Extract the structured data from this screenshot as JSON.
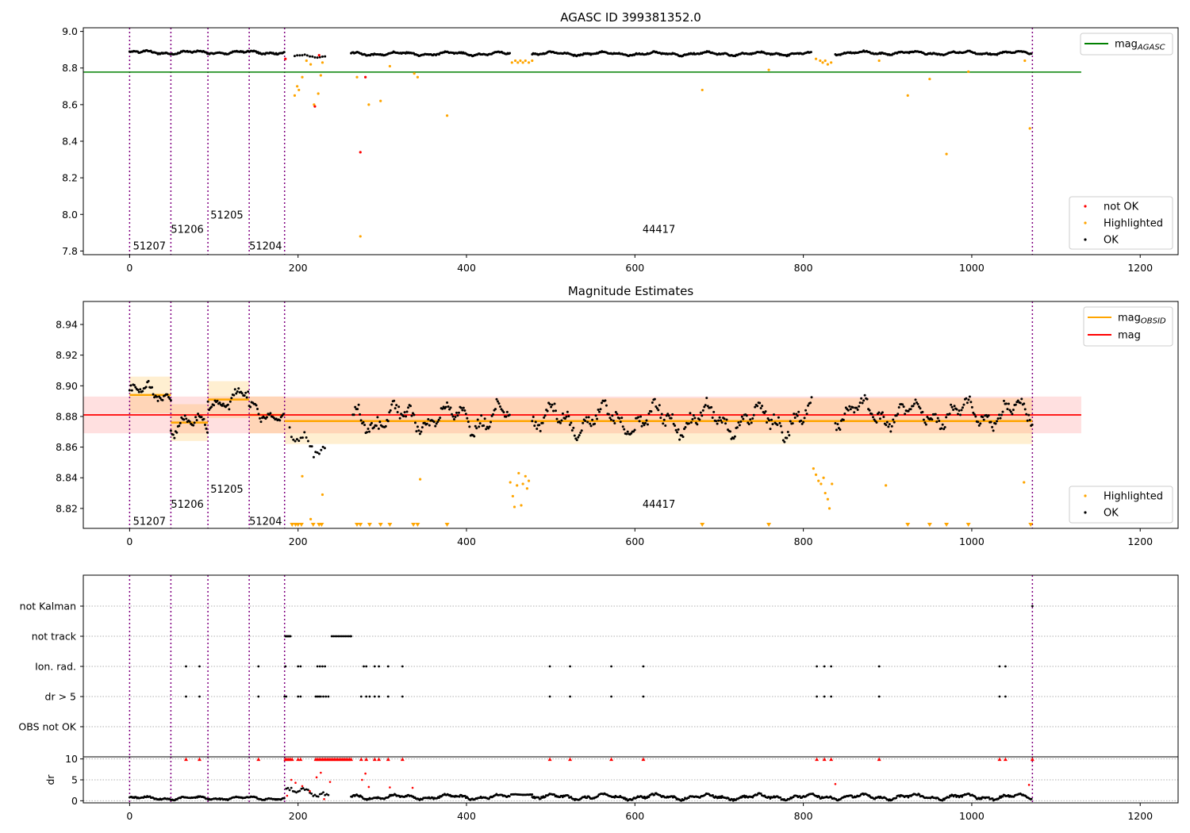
{
  "chart_data": [
    {
      "type": "scatter",
      "title": "AGASC ID 399381352.0",
      "xlim": [
        -55,
        1245
      ],
      "ylim": [
        7.78,
        9.02
      ],
      "xticks": [
        0,
        200,
        400,
        600,
        800,
        1000,
        1200
      ],
      "yticks": [
        "7.8",
        "8.0",
        "8.2",
        "8.4",
        "8.6",
        "8.8",
        "9.0"
      ],
      "obsid_boundaries": [
        0,
        49,
        93,
        142,
        184,
        1072
      ],
      "obsid_labels": [
        {
          "text": "51207",
          "x": 4,
          "y": 7.83
        },
        {
          "text": "51206",
          "x": 49,
          "y": 7.92
        },
        {
          "text": "51205",
          "x": 96,
          "y": 8.0
        },
        {
          "text": "51204",
          "x": 142,
          "y": 7.83
        },
        {
          "text": "44417",
          "x": 609,
          "y": 7.92
        }
      ],
      "reference_line": {
        "name": "mag_AGASC",
        "y": 8.778,
        "x_range": [
          -55,
          1130
        ],
        "color": "#008000"
      },
      "legends": [
        {
          "position": "top-right",
          "entries": [
            {
              "label": "mag",
              "sub": "AGASC",
              "kind": "line",
              "color": "#008000"
            }
          ]
        },
        {
          "position": "bottom-right",
          "entries": [
            {
              "label": "not OK",
              "kind": "dot",
              "color": "#ff0000"
            },
            {
              "label": "Highlighted",
              "kind": "dot",
              "color": "#ffa500"
            },
            {
              "label": "OK",
              "kind": "dot",
              "color": "#000000"
            }
          ]
        }
      ],
      "series": [
        {
          "name": "OK",
          "color": "#000000",
          "segments": [
            {
              "x0": 0,
              "x1": 184,
              "base": 8.885,
              "amp": 0.012,
              "step": 1.2
            },
            {
              "x0": 196,
              "x1": 233,
              "base": 8.865,
              "amp": 0.01,
              "step": 3
            },
            {
              "x0": 263,
              "x1": 452,
              "base": 8.878,
              "amp": 0.012,
              "step": 1.2
            },
            {
              "x0": 478,
              "x1": 810,
              "base": 8.878,
              "amp": 0.012,
              "step": 1.2
            },
            {
              "x0": 838,
              "x1": 1072,
              "base": 8.882,
              "amp": 0.012,
              "step": 1.2
            }
          ]
        },
        {
          "name": "Highlighted",
          "color": "#ffa500",
          "points": [
            [
              196,
              8.65
            ],
            [
              199,
              8.7
            ],
            [
              201,
              8.68
            ],
            [
              205,
              8.75
            ],
            [
              210,
              8.84
            ],
            [
              215,
              8.82
            ],
            [
              219,
              8.6
            ],
            [
              224,
              8.66
            ],
            [
              227,
              8.76
            ],
            [
              229,
              8.83
            ],
            [
              270,
              8.75
            ],
            [
              274,
              7.88
            ],
            [
              284,
              8.6
            ],
            [
              298,
              8.62
            ],
            [
              309,
              8.81
            ],
            [
              338,
              8.77
            ],
            [
              342,
              8.75
            ],
            [
              377,
              8.54
            ],
            [
              454,
              8.83
            ],
            [
              458,
              8.84
            ],
            [
              461,
              8.83
            ],
            [
              464,
              8.84
            ],
            [
              467,
              8.83
            ],
            [
              470,
              8.84
            ],
            [
              474,
              8.83
            ],
            [
              478,
              8.84
            ],
            [
              680,
              8.68
            ],
            [
              759,
              8.79
            ],
            [
              815,
              8.85
            ],
            [
              820,
              8.84
            ],
            [
              823,
              8.83
            ],
            [
              826,
              8.84
            ],
            [
              829,
              8.82
            ],
            [
              833,
              8.83
            ],
            [
              890,
              8.84
            ],
            [
              924,
              8.65
            ],
            [
              950,
              8.74
            ],
            [
              970,
              8.33
            ],
            [
              996,
              8.78
            ],
            [
              1063,
              8.84
            ],
            [
              1069,
              8.47
            ]
          ]
        },
        {
          "name": "not OK",
          "color": "#ff0000",
          "points": [
            [
              185,
              8.85
            ],
            [
              220,
              8.59
            ],
            [
              225,
              8.87
            ],
            [
              274,
              8.34
            ],
            [
              280,
              8.75
            ]
          ]
        }
      ]
    },
    {
      "type": "scatter",
      "title": "Magnitude Estimates",
      "xlim": [
        -55,
        1245
      ],
      "ylim": [
        8.807,
        8.955
      ],
      "xticks": [
        0,
        200,
        400,
        600,
        800,
        1000,
        1200
      ],
      "yticks": [
        "8.82",
        "8.84",
        "8.86",
        "8.88",
        "8.90",
        "8.92",
        "8.94"
      ],
      "obsid_boundaries": [
        0,
        49,
        93,
        142,
        184,
        1072
      ],
      "obsid_labels": [
        {
          "text": "51207",
          "x": 4,
          "y": 8.812
        },
        {
          "text": "51206",
          "x": 49,
          "y": 8.823
        },
        {
          "text": "51205",
          "x": 96,
          "y": 8.833
        },
        {
          "text": "51204",
          "x": 142,
          "y": 8.812
        },
        {
          "text": "44417",
          "x": 609,
          "y": 8.823
        }
      ],
      "mag_line": {
        "name": "mag",
        "y": 8.881,
        "band": [
          8.869,
          8.893
        ],
        "x_range": [
          -55,
          1130
        ],
        "color": "#ff0000"
      },
      "mag_obsid": {
        "name": "mag_OBSID",
        "color": "#ffa500",
        "steps": [
          {
            "x0": 0,
            "x1": 49,
            "y": 8.894,
            "lo": 8.882,
            "hi": 8.906
          },
          {
            "x0": 49,
            "x1": 93,
            "y": 8.876,
            "lo": 8.864,
            "hi": 8.888
          },
          {
            "x0": 93,
            "x1": 142,
            "y": 8.891,
            "lo": 8.879,
            "hi": 8.903
          },
          {
            "x0": 142,
            "x1": 184,
            "y": 8.881,
            "lo": 8.869,
            "hi": 8.893
          },
          {
            "x0": 184,
            "x1": 1072,
            "y": 8.877,
            "lo": 8.862,
            "hi": 8.892
          }
        ]
      },
      "legends": [
        {
          "position": "top-right",
          "entries": [
            {
              "label": "mag",
              "sub": "OBSID",
              "kind": "line",
              "color": "#ffa500"
            },
            {
              "label": "mag",
              "kind": "line",
              "color": "#ff0000"
            }
          ]
        },
        {
          "position": "bottom-right",
          "entries": [
            {
              "label": "Highlighted",
              "kind": "dot",
              "color": "#ffa500"
            },
            {
              "label": "OK",
              "kind": "dot",
              "color": "#000000"
            }
          ]
        }
      ],
      "series": [
        {
          "name": "OK",
          "color": "#000000",
          "segments": [
            {
              "x0": 0,
              "x1": 49,
              "base": 8.895,
              "amp": 0.008,
              "step": 1.4
            },
            {
              "x0": 49,
              "x1": 93,
              "base": 8.874,
              "amp": 0.009,
              "step": 1.4
            },
            {
              "x0": 93,
              "x1": 142,
              "base": 8.891,
              "amp": 0.009,
              "step": 1.4
            },
            {
              "x0": 142,
              "x1": 184,
              "base": 8.883,
              "amp": 0.008,
              "step": 1.4
            },
            {
              "x0": 190,
              "x1": 232,
              "base": 8.862,
              "amp": 0.012,
              "step": 2.2
            },
            {
              "x0": 265,
              "x1": 452,
              "base": 8.879,
              "amp": 0.012,
              "step": 1.4
            },
            {
              "x0": 478,
              "x1": 810,
              "base": 8.878,
              "amp": 0.013,
              "step": 1.4
            },
            {
              "x0": 838,
              "x1": 1072,
              "base": 8.882,
              "amp": 0.011,
              "step": 1.4
            }
          ]
        },
        {
          "name": "Highlighted",
          "color": "#ffa500",
          "points": [
            [
              205,
              8.841
            ],
            [
              215,
              8.813
            ],
            [
              229,
              8.829
            ],
            [
              345,
              8.839
            ],
            [
              452,
              8.837
            ],
            [
              455,
              8.828
            ],
            [
              457,
              8.821
            ],
            [
              460,
              8.835
            ],
            [
              462,
              8.843
            ],
            [
              465,
              8.822
            ],
            [
              467,
              8.836
            ],
            [
              470,
              8.841
            ],
            [
              472,
              8.833
            ],
            [
              474,
              8.838
            ],
            [
              812,
              8.846
            ],
            [
              815,
              8.842
            ],
            [
              818,
              8.838
            ],
            [
              821,
              8.836
            ],
            [
              824,
              8.84
            ],
            [
              826,
              8.83
            ],
            [
              829,
              8.826
            ],
            [
              831,
              8.82
            ],
            [
              834,
              8.836
            ],
            [
              898,
              8.835
            ],
            [
              1062,
              8.837
            ]
          ]
        },
        {
          "name": "Highlighted (below axis)",
          "color": "#ffa500",
          "marker": "triangle-down",
          "x": [
            193,
            197,
            200,
            204,
            218,
            225,
            228,
            270,
            274,
            285,
            298,
            309,
            337,
            342,
            377,
            680,
            759,
            924,
            950,
            970,
            996,
            1070
          ]
        }
      ]
    },
    {
      "type": "scatter",
      "title": "",
      "xlim": [
        -55,
        1245
      ],
      "categories": [
        "not Kalman",
        "not track",
        "Ion. rad.",
        "dr > 5",
        "OBS not OK"
      ],
      "obsid_boundaries": [
        0,
        49,
        93,
        142,
        184,
        1072
      ],
      "series": [
        {
          "name": "not Kalman",
          "x": [
            1072
          ]
        },
        {
          "name": "not track",
          "x": [
            185,
            186,
            187,
            188,
            189,
            190,
            191,
            240,
            242,
            244,
            246,
            248,
            250,
            252,
            254,
            256,
            258,
            260,
            262,
            263
          ]
        },
        {
          "name": "Ion. rad.",
          "x": [
            67,
            83,
            153,
            185,
            200,
            203,
            223,
            226,
            229,
            232,
            278,
            281,
            291,
            296,
            307,
            324,
            499,
            523,
            572,
            610,
            816,
            825,
            833,
            890,
            1033,
            1040
          ]
        },
        {
          "name": "dr > 5",
          "x": [
            67,
            83,
            153,
            184,
            186,
            200,
            203,
            221,
            223,
            225,
            227,
            230,
            233,
            236,
            275,
            281,
            285,
            291,
            296,
            307,
            324,
            499,
            523,
            572,
            610,
            816,
            825,
            833,
            890,
            1033,
            1040
          ]
        },
        {
          "name": "OBS not OK",
          "x": []
        }
      ]
    },
    {
      "type": "scatter",
      "title": "",
      "ylabel": "dr",
      "xlim": [
        -55,
        1245
      ],
      "ylim": [
        -0.5,
        10.5
      ],
      "xticks": [
        0,
        200,
        400,
        600,
        800,
        1000,
        1200
      ],
      "yticks": [
        "0",
        "5",
        "10"
      ],
      "obsid_boundaries": [
        0,
        49,
        93,
        142,
        184,
        1072
      ],
      "series": [
        {
          "name": "OK",
          "color": "#000000",
          "segments": [
            {
              "x0": 0,
              "x1": 184,
              "base": 0.6,
              "amp": 0.5,
              "step": 1.1
            },
            {
              "x0": 186,
              "x1": 236,
              "base": 2.0,
              "amp": 1.3,
              "step": 2.0
            },
            {
              "x0": 263,
              "x1": 452,
              "base": 0.9,
              "amp": 0.7,
              "step": 1.1
            },
            {
              "x0": 453,
              "x1": 478,
              "base": 1.5,
              "amp": 0.1,
              "step": 1.0
            },
            {
              "x0": 478,
              "x1": 1072,
              "base": 0.9,
              "amp": 0.8,
              "step": 1.1
            }
          ]
        },
        {
          "name": "red",
          "color": "#ff0000",
          "points": [
            [
              187,
              1.2
            ],
            [
              192,
              5.0
            ],
            [
              197,
              4.3
            ],
            [
              205,
              3.5
            ],
            [
              214,
              2.3
            ],
            [
              222,
              5.6
            ],
            [
              227,
              6.7
            ],
            [
              231,
              0.4
            ],
            [
              238,
              4.5
            ],
            [
              276,
              5.0
            ],
            [
              280,
              6.5
            ],
            [
              284,
              3.3
            ],
            [
              309,
              3.2
            ],
            [
              336,
              3.1
            ],
            [
              838,
              4.0
            ],
            [
              1068,
              3.8
            ]
          ]
        },
        {
          "name": "dr (clipped)",
          "color": "#ff0000",
          "marker": "triangle-up",
          "x": [
            67,
            83,
            153,
            185,
            187,
            189,
            191,
            193,
            200,
            203,
            221,
            223,
            225,
            227,
            229,
            231,
            233,
            235,
            237,
            239,
            241,
            243,
            245,
            247,
            249,
            251,
            253,
            255,
            257,
            259,
            261,
            263,
            275,
            281,
            291,
            296,
            307,
            324,
            499,
            523,
            572,
            610,
            816,
            825,
            833,
            890,
            1033,
            1040,
            1072
          ]
        }
      ]
    }
  ]
}
